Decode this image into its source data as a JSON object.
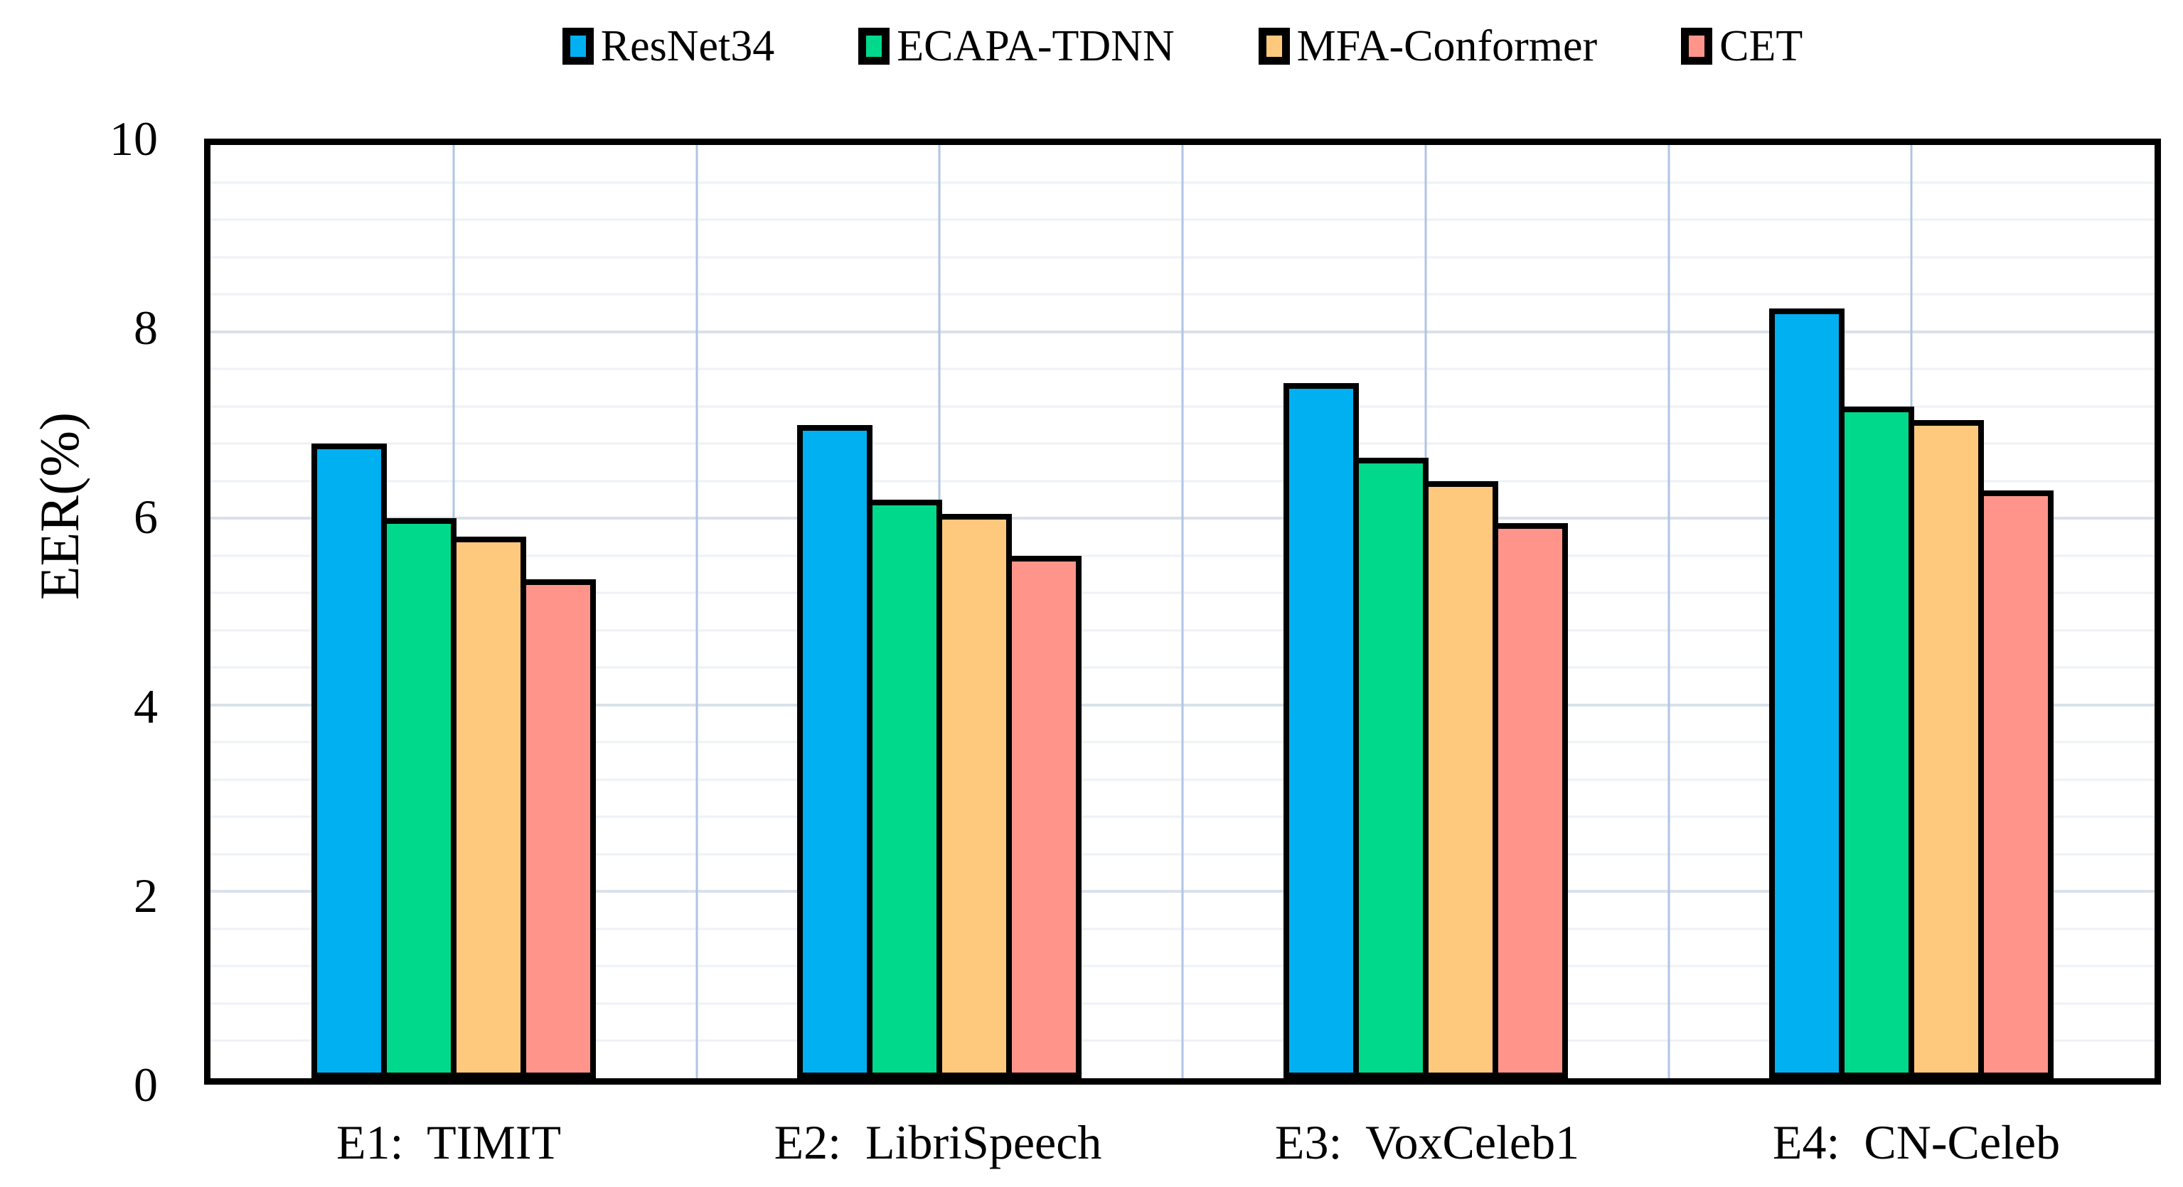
{
  "chart_data": {
    "type": "bar",
    "title": "",
    "ylabel": "EER(%)",
    "xlabel": "",
    "ylim": [
      0,
      10
    ],
    "y_major_step": 2,
    "y_minor_step": 0.4,
    "y_tick_labels": [
      "10",
      "8",
      "6",
      "4",
      "2",
      "0"
    ],
    "grid": "on",
    "legend_position": "top-center",
    "categories": [
      "E1:  TIMIT",
      "E2:  LibriSpeech",
      "E3:  VoxCeleb1",
      "E4:  CN-Celeb"
    ],
    "series": [
      {
        "name": "ResNet34",
        "color": "#00B0F0",
        "values": [
          6.8,
          7.0,
          7.45,
          8.25
        ]
      },
      {
        "name": "ECAPA-TDNN",
        "color": "#00D98B",
        "values": [
          6.0,
          6.2,
          6.65,
          7.2
        ]
      },
      {
        "name": "MFA-Conformer",
        "color": "#FFC97D",
        "values": [
          5.8,
          6.05,
          6.4,
          7.05
        ]
      },
      {
        "name": "CET",
        "color": "#FF958A",
        "values": [
          5.35,
          5.6,
          5.95,
          6.3
        ]
      }
    ],
    "colors": {
      "bar_border": "#000000",
      "plot_border": "#000000",
      "grid_major_h": "#d9e1ea",
      "grid_minor_h": "#eef2f6",
      "grid_vertical": "#afc5e4"
    }
  }
}
